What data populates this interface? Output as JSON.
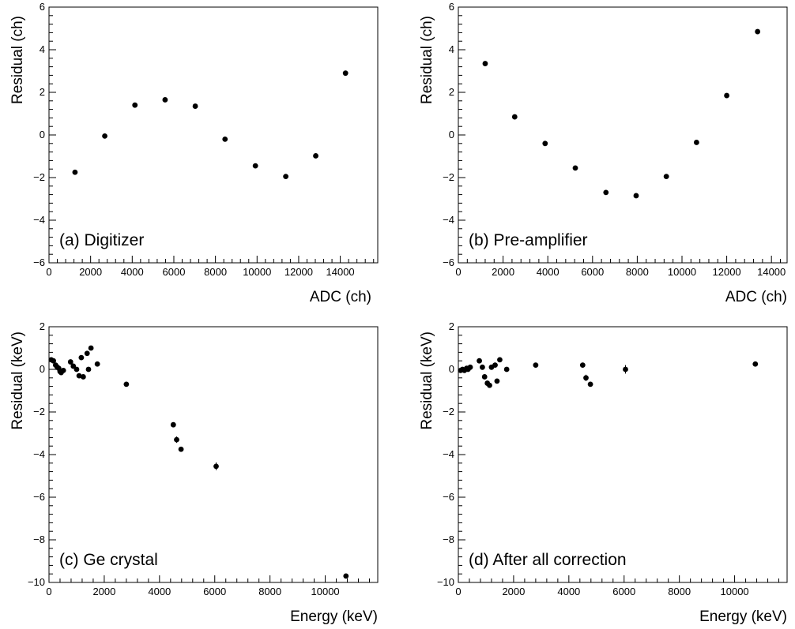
{
  "chart_data": [
    {
      "type": "scatter",
      "annotation": "(a) Digitizer",
      "xlabel": "ADC (ch)",
      "ylabel": "Residual (ch)",
      "xlim": [
        0,
        15800
      ],
      "ylim": [
        -6,
        6
      ],
      "xticks": [
        0,
        2000,
        4000,
        6000,
        8000,
        10000,
        12000,
        14000
      ],
      "yticks": [
        -6,
        -4,
        -2,
        0,
        2,
        4,
        6
      ],
      "grid": false,
      "series": [
        {
          "x": [
            1250,
            2680,
            4130,
            5580,
            7030,
            8460,
            9920,
            11380,
            12820,
            14250
          ],
          "y": [
            -1.75,
            -0.05,
            1.4,
            1.65,
            1.35,
            -0.2,
            -1.45,
            -1.95,
            -0.98,
            2.9
          ],
          "err": [
            0,
            0,
            0,
            0,
            0,
            0,
            0,
            0,
            0,
            0
          ]
        }
      ]
    },
    {
      "type": "scatter",
      "annotation": "(b) Pre-amplifier",
      "xlabel": "ADC (ch)",
      "ylabel": "Residual (ch)",
      "xlim": [
        0,
        14700
      ],
      "ylim": [
        -6,
        6
      ],
      "xticks": [
        0,
        2000,
        4000,
        6000,
        8000,
        10000,
        12000,
        14000
      ],
      "yticks": [
        -6,
        -4,
        -2,
        0,
        2,
        4,
        6
      ],
      "grid": false,
      "series": [
        {
          "x": [
            1200,
            2520,
            3880,
            5230,
            6600,
            7950,
            9300,
            10650,
            12000,
            13380
          ],
          "y": [
            3.35,
            0.85,
            -0.4,
            -1.55,
            -2.7,
            -2.85,
            -1.95,
            -0.35,
            1.85,
            4.85
          ],
          "err": [
            0,
            0,
            0,
            0,
            0,
            0,
            0,
            0,
            0,
            0
          ]
        }
      ]
    },
    {
      "type": "scatter",
      "annotation": "(c) Ge crystal",
      "xlabel": "Energy (keV)",
      "ylabel": "Residual (keV)",
      "xlim": [
        0,
        11900
      ],
      "ylim": [
        -10,
        2
      ],
      "xticks": [
        0,
        2000,
        4000,
        6000,
        8000,
        10000
      ],
      "yticks": [
        -10,
        -8,
        -6,
        -4,
        -2,
        0,
        2
      ],
      "grid": false,
      "series": [
        {
          "x": [
            80,
            160,
            240,
            300,
            350,
            400,
            440,
            520,
            780,
            880,
            1000,
            1090,
            1170,
            1240,
            1380,
            1430,
            1520,
            1750,
            2800,
            4500,
            4620,
            4780,
            6050,
            10750
          ],
          "y": [
            0.45,
            0.4,
            0.2,
            0.1,
            0.05,
            -0.1,
            -0.15,
            -0.05,
            0.35,
            0.15,
            0.0,
            -0.3,
            0.55,
            -0.35,
            0.75,
            0.0,
            1.0,
            0.25,
            -0.7,
            -2.6,
            -3.3,
            -3.75,
            -4.55,
            -9.7
          ],
          "err": [
            0,
            0,
            0,
            0,
            0,
            0,
            0,
            0,
            0,
            0,
            0,
            0,
            0,
            0,
            0,
            0,
            0,
            0,
            0,
            0,
            0.15,
            0,
            0.18,
            0
          ]
        }
      ]
    },
    {
      "type": "scatter",
      "annotation": "(d) After all correction",
      "xlabel": "Energy (keV)",
      "ylabel": "Residual (keV)",
      "xlim": [
        0,
        11900
      ],
      "ylim": [
        -10,
        2
      ],
      "xticks": [
        0,
        2000,
        4000,
        6000,
        8000,
        10000
      ],
      "yticks": [
        -10,
        -8,
        -6,
        -4,
        -2,
        0,
        2
      ],
      "grid": false,
      "series": [
        {
          "x": [
            80,
            150,
            220,
            300,
            350,
            430,
            760,
            870,
            950,
            1050,
            1130,
            1200,
            1330,
            1400,
            1500,
            1750,
            2800,
            4500,
            4620,
            4780,
            6050,
            10750
          ],
          "y": [
            -0.05,
            0.0,
            -0.05,
            0.05,
            0.0,
            0.1,
            0.4,
            0.1,
            -0.35,
            -0.65,
            -0.75,
            0.1,
            0.2,
            -0.55,
            0.45,
            0.0,
            0.2,
            0.2,
            -0.4,
            -0.7,
            0.0,
            0.25
          ],
          "err": [
            0,
            0,
            0,
            0,
            0,
            0,
            0,
            0,
            0,
            0,
            0,
            0,
            0,
            0,
            0,
            0,
            0,
            0,
            0.15,
            0,
            0.2,
            0
          ]
        }
      ]
    }
  ]
}
